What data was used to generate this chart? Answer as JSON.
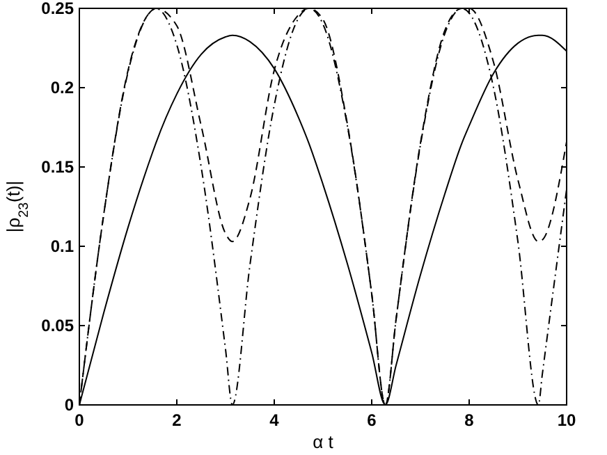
{
  "chart_data": {
    "type": "line",
    "xlabel": "α t",
    "ylabel": "|ρ$_{23}$(t)|",
    "x": [
      0,
      0.5,
      1,
      1.5,
      1.57,
      2,
      2.5,
      3,
      3.14,
      3.5,
      4,
      4.5,
      4.71,
      5,
      5.5,
      6,
      6.28,
      6.5,
      7,
      7.5,
      7.85,
      8,
      8.5,
      9,
      9.42,
      9.5,
      10
    ],
    "series": [
      {
        "color": "#000000",
        "line_style": "solid",
        "values": [
          0,
          0.058,
          0.112,
          0.159,
          0.165,
          0.196,
          0.221,
          0.232,
          0.233,
          0.229,
          0.212,
          0.181,
          0.165,
          0.139,
          0.089,
          0.033,
          0,
          0.025,
          0.082,
          0.133,
          0.165,
          0.176,
          0.209,
          0.228,
          0.233,
          0.233,
          0.223
        ]
      },
      {
        "color": "#000000",
        "line_style": "dashed",
        "values": [
          0,
          0.12,
          0.211,
          0.249,
          0.25,
          0.239,
          0.176,
          0.108,
          0.103,
          0.13,
          0.211,
          0.246,
          0.25,
          0.243,
          0.177,
          0.07,
          0,
          0.054,
          0.165,
          0.236,
          0.25,
          0.25,
          0.216,
          0.142,
          0.103,
          0.104,
          0.166
        ]
      },
      {
        "color": "#000000",
        "line_style": "dashdot",
        "values": [
          0,
          0.12,
          0.21,
          0.249,
          0.25,
          0.227,
          0.15,
          0.035,
          0,
          0.088,
          0.189,
          0.244,
          0.25,
          0.24,
          0.176,
          0.07,
          0,
          0.054,
          0.164,
          0.234,
          0.25,
          0.247,
          0.2,
          0.103,
          0,
          0.019,
          0.136
        ]
      }
    ],
    "xlim": [
      0,
      10
    ],
    "xticks": [
      0,
      2,
      4,
      6,
      8,
      10
    ],
    "ylim": [
      0,
      0.25
    ],
    "yticks": [
      0,
      0.05,
      0.1,
      0.15,
      0.2,
      0.25
    ],
    "grid": false
  }
}
